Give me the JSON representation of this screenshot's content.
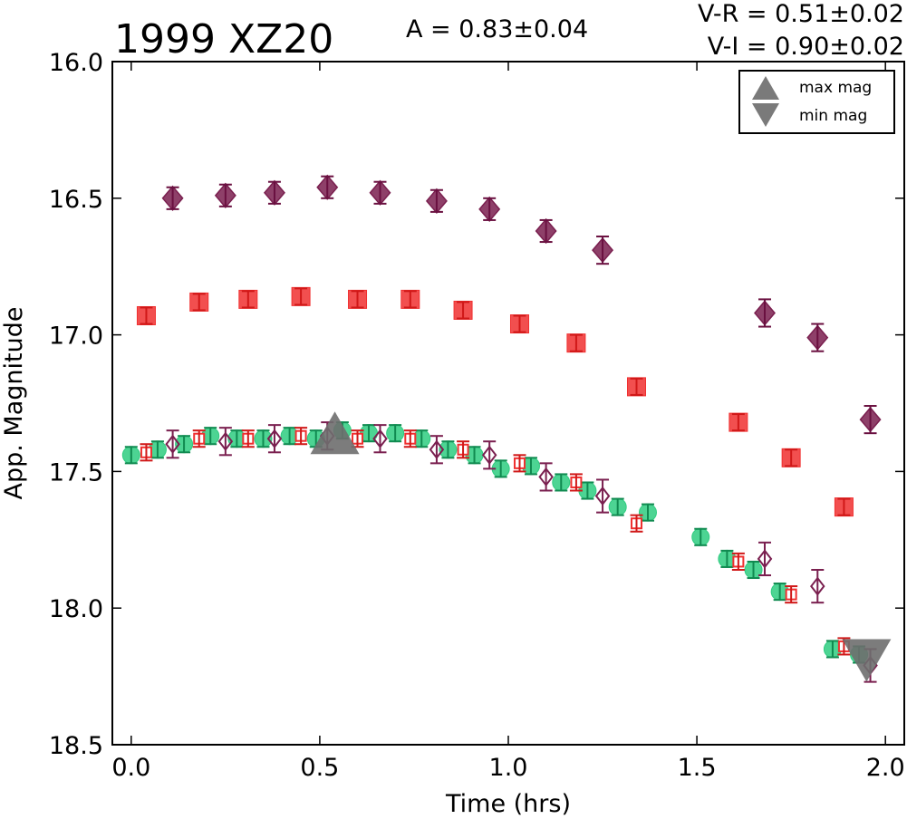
{
  "chart_data": {
    "type": "scatter",
    "title": "1999 XZ20",
    "annotations": {
      "amplitude": "A  = 0.83±0.04",
      "vr": "V-R = 0.51±0.02",
      "vi": "V-I  = 0.90±0.02"
    },
    "xlabel": "Time (hrs)",
    "ylabel": "App. Magnitude",
    "xlim": [
      -0.05,
      2.05
    ],
    "ylim": [
      18.5,
      16.0
    ],
    "y_inverted": true,
    "xticks": [
      "0.0",
      "0.5",
      "1.0",
      "1.5",
      "2.0"
    ],
    "yticks": [
      "16.0",
      "16.5",
      "17.0",
      "17.5",
      "18.0",
      "18.5"
    ],
    "grid": false,
    "legend": {
      "placement": "top-right",
      "entries": [
        "max mag",
        "min mag"
      ]
    },
    "series": [
      {
        "kind": "filled-diamond",
        "color": "#7a1f4f",
        "points": [
          {
            "x": 0.11,
            "y": 16.5,
            "err": 0.04
          },
          {
            "x": 0.25,
            "y": 16.49,
            "err": 0.04
          },
          {
            "x": 0.38,
            "y": 16.48,
            "err": 0.04
          },
          {
            "x": 0.52,
            "y": 16.46,
            "err": 0.04
          },
          {
            "x": 0.66,
            "y": 16.48,
            "err": 0.04
          },
          {
            "x": 0.81,
            "y": 16.51,
            "err": 0.04
          },
          {
            "x": 0.95,
            "y": 16.54,
            "err": 0.04
          },
          {
            "x": 1.1,
            "y": 16.62,
            "err": 0.04
          },
          {
            "x": 1.25,
            "y": 16.69,
            "err": 0.05
          },
          {
            "x": 1.68,
            "y": 16.92,
            "err": 0.05
          },
          {
            "x": 1.82,
            "y": 17.01,
            "err": 0.05
          },
          {
            "x": 1.96,
            "y": 17.31,
            "err": 0.05
          }
        ]
      },
      {
        "kind": "filled-square",
        "color": "#f03030",
        "points": [
          {
            "x": 0.04,
            "y": 16.93,
            "err": 0.03
          },
          {
            "x": 0.18,
            "y": 16.88,
            "err": 0.03
          },
          {
            "x": 0.31,
            "y": 16.87,
            "err": 0.03
          },
          {
            "x": 0.45,
            "y": 16.86,
            "err": 0.03
          },
          {
            "x": 0.6,
            "y": 16.87,
            "err": 0.03
          },
          {
            "x": 0.74,
            "y": 16.87,
            "err": 0.03
          },
          {
            "x": 0.88,
            "y": 16.91,
            "err": 0.03
          },
          {
            "x": 1.03,
            "y": 16.96,
            "err": 0.03
          },
          {
            "x": 1.18,
            "y": 17.03,
            "err": 0.03
          },
          {
            "x": 1.34,
            "y": 17.19,
            "err": 0.03
          },
          {
            "x": 1.61,
            "y": 17.32,
            "err": 0.03
          },
          {
            "x": 1.75,
            "y": 17.45,
            "err": 0.03
          },
          {
            "x": 1.89,
            "y": 17.63,
            "err": 0.03
          }
        ]
      },
      {
        "kind": "filled-circle",
        "color": "#2ecc80",
        "points": [
          {
            "x": 0.0,
            "y": 17.44,
            "err": 0.03
          },
          {
            "x": 0.07,
            "y": 17.42,
            "err": 0.03
          },
          {
            "x": 0.14,
            "y": 17.4,
            "err": 0.03
          },
          {
            "x": 0.21,
            "y": 17.37,
            "err": 0.03
          },
          {
            "x": 0.28,
            "y": 17.38,
            "err": 0.03
          },
          {
            "x": 0.35,
            "y": 17.38,
            "err": 0.03
          },
          {
            "x": 0.42,
            "y": 17.37,
            "err": 0.03
          },
          {
            "x": 0.49,
            "y": 17.38,
            "err": 0.03
          },
          {
            "x": 0.56,
            "y": 17.35,
            "err": 0.03
          },
          {
            "x": 0.63,
            "y": 17.36,
            "err": 0.03
          },
          {
            "x": 0.7,
            "y": 17.36,
            "err": 0.03
          },
          {
            "x": 0.77,
            "y": 17.38,
            "err": 0.03
          },
          {
            "x": 0.84,
            "y": 17.42,
            "err": 0.03
          },
          {
            "x": 0.91,
            "y": 17.44,
            "err": 0.03
          },
          {
            "x": 0.98,
            "y": 17.49,
            "err": 0.03
          },
          {
            "x": 1.06,
            "y": 17.48,
            "err": 0.03
          },
          {
            "x": 1.14,
            "y": 17.54,
            "err": 0.03
          },
          {
            "x": 1.21,
            "y": 17.57,
            "err": 0.03
          },
          {
            "x": 1.29,
            "y": 17.63,
            "err": 0.03
          },
          {
            "x": 1.37,
            "y": 17.65,
            "err": 0.03
          },
          {
            "x": 1.51,
            "y": 17.74,
            "err": 0.03
          },
          {
            "x": 1.58,
            "y": 17.82,
            "err": 0.03
          },
          {
            "x": 1.65,
            "y": 17.86,
            "err": 0.03
          },
          {
            "x": 1.72,
            "y": 17.94,
            "err": 0.03
          },
          {
            "x": 1.86,
            "y": 18.15,
            "err": 0.03
          },
          {
            "x": 1.93,
            "y": 18.17,
            "err": 0.03
          }
        ]
      },
      {
        "kind": "open-square",
        "color": "#f03030",
        "points": [
          {
            "x": 0.04,
            "y": 17.43,
            "err": 0.03
          },
          {
            "x": 0.18,
            "y": 17.38,
            "err": 0.03
          },
          {
            "x": 0.31,
            "y": 17.38,
            "err": 0.03
          },
          {
            "x": 0.45,
            "y": 17.37,
            "err": 0.03
          },
          {
            "x": 0.6,
            "y": 17.38,
            "err": 0.03
          },
          {
            "x": 0.74,
            "y": 17.38,
            "err": 0.03
          },
          {
            "x": 0.88,
            "y": 17.42,
            "err": 0.03
          },
          {
            "x": 1.03,
            "y": 17.47,
            "err": 0.03
          },
          {
            "x": 1.18,
            "y": 17.54,
            "err": 0.03
          },
          {
            "x": 1.34,
            "y": 17.69,
            "err": 0.03
          },
          {
            "x": 1.61,
            "y": 17.83,
            "err": 0.03
          },
          {
            "x": 1.75,
            "y": 17.95,
            "err": 0.03
          },
          {
            "x": 1.89,
            "y": 18.14,
            "err": 0.03
          }
        ]
      },
      {
        "kind": "open-diamond",
        "color": "#7a1f4f",
        "points": [
          {
            "x": 0.11,
            "y": 17.4,
            "err": 0.05
          },
          {
            "x": 0.25,
            "y": 17.39,
            "err": 0.05
          },
          {
            "x": 0.38,
            "y": 17.38,
            "err": 0.05
          },
          {
            "x": 0.52,
            "y": 17.37,
            "err": 0.05
          },
          {
            "x": 0.66,
            "y": 17.38,
            "err": 0.05
          },
          {
            "x": 0.81,
            "y": 17.42,
            "err": 0.05
          },
          {
            "x": 0.95,
            "y": 17.44,
            "err": 0.05
          },
          {
            "x": 1.1,
            "y": 17.52,
            "err": 0.05
          },
          {
            "x": 1.25,
            "y": 17.59,
            "err": 0.06
          },
          {
            "x": 1.68,
            "y": 17.82,
            "err": 0.06
          },
          {
            "x": 1.82,
            "y": 17.92,
            "err": 0.06
          },
          {
            "x": 1.96,
            "y": 18.21,
            "err": 0.06
          }
        ]
      }
    ],
    "markers": [
      {
        "kind": "max",
        "x": 0.54,
        "y": 17.37
      },
      {
        "kind": "min",
        "x": 1.95,
        "y": 18.18
      }
    ]
  }
}
